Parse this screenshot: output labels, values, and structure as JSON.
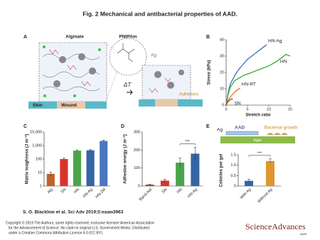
{
  "title": "Fig. 2 Mechanical and antibacterial properties of AAD.",
  "panels": [
    "A",
    "B",
    "C",
    "D",
    "E"
  ],
  "schematic_a": {
    "alginate": "Alginate",
    "pnipam": "PNIPAm",
    "ag": "Ag",
    "delta_t": "ΔT",
    "adhesion": "Adhesion",
    "skin": "Skin",
    "wound": "Wound"
  },
  "schematic_e": {
    "ag": "Ag",
    "aad": "AAD",
    "bacterial_growth": "Bacterial growth",
    "agar": "Agar"
  },
  "citation": "S. O. Blacklow et al. Sci Adv 2019;5:eaaw3963",
  "copyright": [
    "Copyright © 2019 The Authors, some rights reserved; exclusive licensee American Association",
    "for the Advancement of Science. No claim to original U.S. Government Works. Distributed",
    "under a Creative Commons Attribution License 4.0 (CC BY)."
  ],
  "logo": {
    "name": "ScienceAdvances",
    "publisher": "AAAS"
  },
  "chart_data": [
    {
      "type": "line",
      "x_label": "Stretch ratio",
      "y_label": "Stress (kPa)",
      "xlim": [
        0,
        15
      ],
      "xticks": [
        0,
        5,
        10,
        15
      ],
      "ylim": [
        0,
        40
      ],
      "yticks": [
        0,
        10,
        20,
        30,
        40
      ],
      "series": [
        {
          "name": "HN-Ag",
          "color": "#3b6fb6",
          "x": [
            0,
            0.5,
            1,
            2,
            3,
            4,
            5,
            6,
            7,
            8,
            9,
            9.5
          ],
          "values": [
            0,
            8,
            13,
            18,
            22,
            25,
            28,
            30,
            32,
            34,
            36,
            37
          ]
        },
        {
          "name": "HN",
          "color": "#3aaa35",
          "x": [
            0,
            0.5,
            1,
            2,
            4,
            6,
            8,
            10,
            12,
            13,
            14,
            15
          ],
          "values": [
            0,
            7,
            11,
            15,
            18,
            20,
            22,
            24,
            27,
            29,
            31,
            30
          ]
        },
        {
          "name": "HN-RT",
          "color": "#d17a22",
          "x": [
            0,
            0.5,
            1,
            1.5,
            2,
            2.5,
            3,
            3.3
          ],
          "values": [
            0,
            3,
            5,
            6.5,
            8,
            9,
            10,
            10
          ]
        },
        {
          "name": "SN",
          "color": "#c0392b",
          "x": [
            0,
            0.3,
            0.6,
            1,
            1.3,
            1.6
          ],
          "values": [
            0,
            1.5,
            2.5,
            3.3,
            3.8,
            3.5
          ]
        }
      ]
    },
    {
      "type": "bar",
      "y_label": "Matrix toughness (J m⁻²)",
      "yscale": "log",
      "ylim": [
        1,
        10000
      ],
      "yticks": [
        1,
        10,
        100,
        {
          "value": 1000,
          "label": "1,000"
        },
        {
          "value": 10000,
          "label": "10,000"
        }
      ],
      "categories": [
        "Alg",
        "SN",
        "HN",
        "HN-Ag",
        "HN-2M"
      ],
      "values": [
        8,
        100,
        420,
        450,
        2200
      ],
      "errors": [
        3,
        20,
        60,
        60,
        300
      ],
      "colors": [
        "#c0622b",
        "#d9342b",
        "#4aa54a",
        "#3465a4",
        "#4a78c0"
      ]
    },
    {
      "type": "bar",
      "y_label": "Adhesion energy (J m⁻²)",
      "annotation": "***",
      "ylim": [
        0,
        300
      ],
      "yticks": [
        0,
        100,
        200,
        300
      ],
      "categories": [
        "Band-Aid",
        "SN",
        "HN",
        "HN-Ag"
      ],
      "values": [
        8,
        30,
        130,
        180
      ],
      "errors": [
        3,
        8,
        25,
        35
      ],
      "colors": [
        "#a0522d",
        "#d9342b",
        "#4aa54a",
        "#3465a4"
      ]
    },
    {
      "type": "bar",
      "y_label": "Colonies per gel",
      "annotation": "***",
      "ylim": [
        0,
        1.5
      ],
      "yticks": [
        0,
        0.5,
        {
          "value": 1,
          "label": "1.0"
        },
        1.5
      ],
      "categories": [
        "With Ag",
        "Without Ag"
      ],
      "values": [
        0.25,
        1.2
      ],
      "errors": [
        0.08,
        0.1
      ],
      "colors": [
        "#3465a4",
        "#e0962e"
      ]
    }
  ]
}
